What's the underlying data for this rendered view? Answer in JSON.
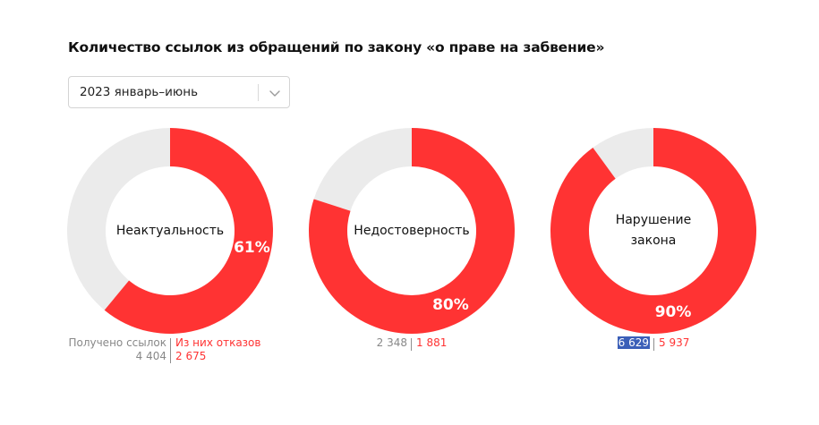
{
  "title": "Количество ссылок из обращений по закону «о праве на забвение»",
  "period_select": {
    "value": "2023 январь–июнь"
  },
  "colors": {
    "accent": "#ff3333",
    "track": "#ebebeb",
    "received_text": "#888888",
    "highlight": "#3b5fb8"
  },
  "chart_data": [
    {
      "type": "pie",
      "center_label": "Неактуальность",
      "percent": 61,
      "percent_label": "61%",
      "received": "4 404",
      "refused": "2 675",
      "received_label": "Получено ссылок",
      "refused_label": "Из них отказов"
    },
    {
      "type": "pie",
      "center_label": "Недостоверность",
      "percent": 80,
      "percent_label": "80%",
      "received": "2 348",
      "refused": "1 881"
    },
    {
      "type": "pie",
      "center_label": "Нарушение\nзакона",
      "percent": 90,
      "percent_label": "90%",
      "received": "6 629",
      "refused": "5 937"
    }
  ]
}
